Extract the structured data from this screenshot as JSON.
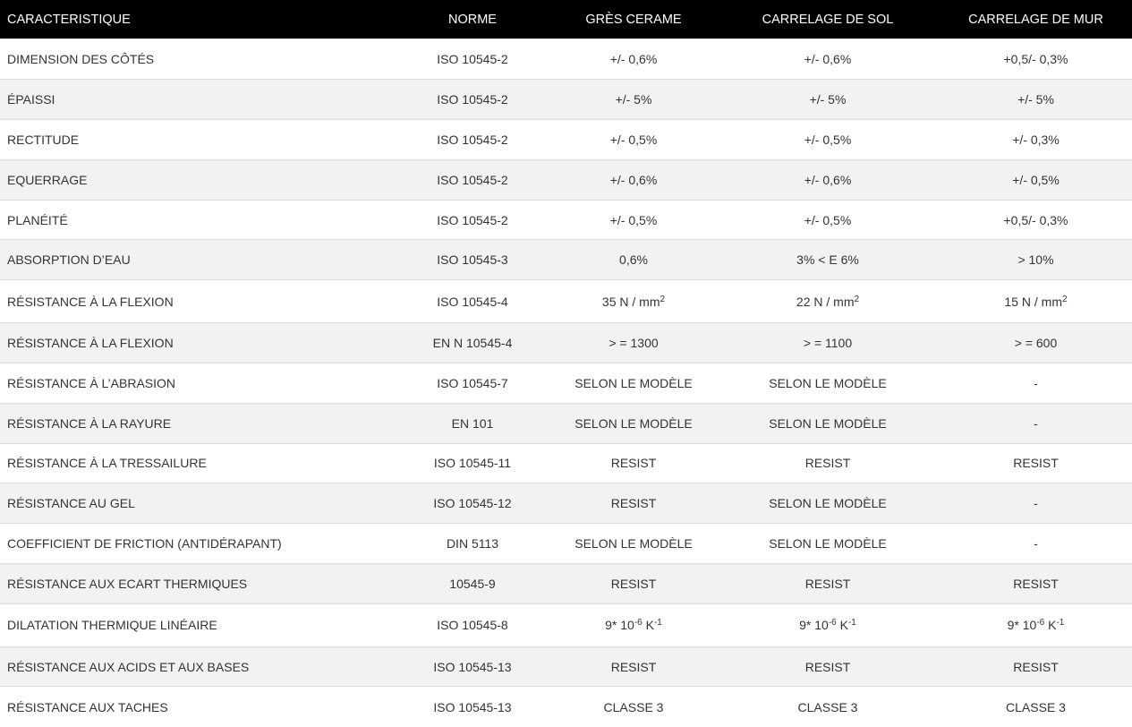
{
  "table": {
    "header": [
      "CARACTERISTIQUE",
      "NORME",
      "GRÈS CERAME",
      "CARRELAGE DE SOL",
      "CARRELAGE DE MUR"
    ],
    "rows": [
      [
        "DIMENSION DES CÔTÉS",
        "ISO 10545-2",
        "+/- 0,6%",
        "+/- 0,6%",
        "+0,5/- 0,3%"
      ],
      [
        "ÉPAISSI",
        "ISO 10545-2",
        "+/- 5%",
        "+/- 5%",
        "+/- 5%"
      ],
      [
        "RECTITUDE",
        "ISO 10545-2",
        "+/- 0,5%",
        "+/- 0,5%",
        "+/- 0,3%"
      ],
      [
        "EQUERRAGE",
        "ISO 10545-2",
        "+/- 0,6%",
        "+/- 0,6%",
        "+/- 0,5%"
      ],
      [
        "PLANÉITÉ",
        "ISO 10545-2",
        "+/- 0,5%",
        "+/- 0,5%",
        "+0,5/- 0,3%"
      ],
      [
        "ABSORPTION D’EAU",
        "ISO 10545-3",
        "0,6%",
        "3% < E 6%",
        "> 10%"
      ],
      [
        "RÉSISTANCE À LA FLEXION",
        "ISO 10545-4",
        {
          "parts": [
            {
              "text": "35 N / mm"
            },
            {
              "sup": "2"
            }
          ]
        },
        {
          "parts": [
            {
              "text": "22 N / mm"
            },
            {
              "sup": "2"
            }
          ]
        },
        {
          "parts": [
            {
              "text": "15 N / mm"
            },
            {
              "sup": "2"
            }
          ]
        }
      ],
      [
        "RÉSISTANCE À LA FLEXION",
        "EN N 10545-4",
        "> = 1300",
        "> = 1100",
        "> = 600"
      ],
      [
        "RÉSISTANCE À L’ABRASION",
        "ISO 10545-7",
        "SELON LE MODÈLE",
        "SELON LE MODÈLE",
        "-"
      ],
      [
        "RÉSISTANCE À LA RAYURE",
        "EN 101",
        "SELON LE MODÈLE",
        "SELON LE MODÈLE",
        "-"
      ],
      [
        "RÉSISTANCE À LA TRESSAILURE",
        "ISO 10545-11",
        "RESIST",
        "RESIST",
        "RESIST"
      ],
      [
        "RÉSISTANCE AU GEL",
        "ISO 10545-12",
        "RESIST",
        "SELON LE MODÈLE",
        "-"
      ],
      [
        "COEFFICIENT DE FRICTION (ANTIDÉRAPANT)",
        "DIN 5113",
        "SELON LE MODÈLE",
        "SELON LE MODÈLE",
        "-"
      ],
      [
        "RÉSISTANCE AUX ECART THERMIQUES",
        "10545-9",
        "RESIST",
        "RESIST",
        "RESIST"
      ],
      [
        "DILATATION THERMIQUE LINÉAIRE",
        "ISO 10545-8",
        {
          "parts": [
            {
              "text": "9* 10"
            },
            {
              "sup": "-6"
            },
            {
              "text": " K"
            },
            {
              "sup": "-1"
            }
          ]
        },
        {
          "parts": [
            {
              "text": "9* 10"
            },
            {
              "sup": "-6"
            },
            {
              "text": " K"
            },
            {
              "sup": "-1"
            }
          ]
        },
        {
          "parts": [
            {
              "text": "9* 10"
            },
            {
              "sup": "-6"
            },
            {
              "text": " K"
            },
            {
              "sup": "-1"
            }
          ]
        }
      ],
      [
        "RÉSISTANCE AUX ACIDS ET AUX BASES",
        "ISO 10545-13",
        "RESIST",
        "RESIST",
        "RESIST"
      ],
      [
        "RÉSISTANCE AUX TACHES",
        "ISO 10545-13",
        "CLASSE 3",
        "CLASSE 3",
        "CLASSE 3"
      ]
    ]
  }
}
